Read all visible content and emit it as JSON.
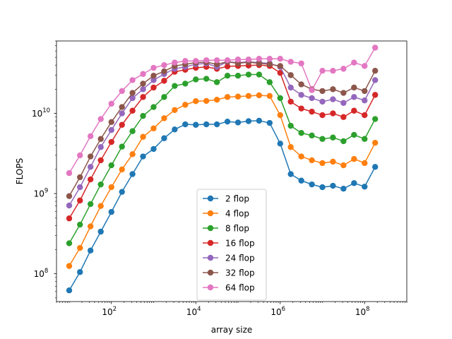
{
  "chart_data": {
    "type": "line",
    "title": "",
    "xlabel": "array size",
    "ylabel": "FLOPS",
    "xscale": "log",
    "yscale": "log",
    "xlim": [
      5,
      1000000000.0
    ],
    "ylim": [
      45000000.0,
      80000000000.0
    ],
    "xticks": [
      {
        "value": 100,
        "base": "10",
        "exp": "2"
      },
      {
        "value": 10000,
        "base": "10",
        "exp": "4"
      },
      {
        "value": 1000000,
        "base": "10",
        "exp": "6"
      },
      {
        "value": 100000000,
        "base": "10",
        "exp": "8"
      }
    ],
    "yticks": [
      {
        "value": 100000000.0,
        "base": "10",
        "exp": "8"
      },
      {
        "value": 1000000000.0,
        "base": "10",
        "exp": "9"
      },
      {
        "value": 10000000000.0,
        "base": "10",
        "exp": "10"
      }
    ],
    "grid": false,
    "legend_position": "lower center",
    "x": [
      10,
      18,
      32,
      56,
      100,
      178,
      316,
      562,
      1000,
      1778,
      3162,
      5623,
      10000,
      17783,
      31623,
      56234,
      100000,
      177828,
      316228,
      562341,
      1000000,
      1778279,
      3162278,
      5623413,
      10000000,
      17782794,
      31622777,
      56234133,
      100000000,
      177827941
    ],
    "series": [
      {
        "name": "2 flop",
        "color": "#1f77b4",
        "values": [
          62000000.0,
          105000000.0,
          195000000.0,
          335000000.0,
          590000000.0,
          1050000000.0,
          1750000000.0,
          2900000000.0,
          3600000000.0,
          4900000000.0,
          6300000000.0,
          7300000000.0,
          7200000000.0,
          7300000000.0,
          7300000000.0,
          7900000000.0,
          7700000000.0,
          8000000000.0,
          8100000000.0,
          7600000000.0,
          4200000000.0,
          1750000000.0,
          1450000000.0,
          1300000000.0,
          1200000000.0,
          1250000000.0,
          1150000000.0,
          1350000000.0,
          1220000000.0,
          2150000000.0
        ]
      },
      {
        "name": "4 flop",
        "color": "#ff7f0e",
        "values": [
          125000000.0,
          210000000.0,
          390000000.0,
          700000000.0,
          1200000000.0,
          2000000000.0,
          3100000000.0,
          5100000000.0,
          6500000000.0,
          8700000000.0,
          11000000000.0,
          12800000000.0,
          14200000000.0,
          14300000000.0,
          14800000000.0,
          16000000000.0,
          16200000000.0,
          16500000000.0,
          16800000000.0,
          16500000000.0,
          9500000000.0,
          3800000000.0,
          2900000000.0,
          2600000000.0,
          2400000000.0,
          2500000000.0,
          2250000000.0,
          2700000000.0,
          2400000000.0,
          4300000000.0
        ]
      },
      {
        "name": "8 flop",
        "color": "#2ca02c",
        "values": [
          240000000.0,
          410000000.0,
          740000000.0,
          1300000000.0,
          2250000000.0,
          3850000000.0,
          6000000000.0,
          9300000000.0,
          12000000000.0,
          16000000000.0,
          22000000000.0,
          23500000000.0,
          26500000000.0,
          27000000000.0,
          24500000000.0,
          29500000000.0,
          29500000000.0,
          30500000000.0,
          30500000000.0,
          24500000000.0,
          15500000000.0,
          7000000000.0,
          5700000000.0,
          5300000000.0,
          4800000000.0,
          5000000000.0,
          4500000000.0,
          5400000000.0,
          4800000000.0,
          8500000000.0
        ]
      },
      {
        "name": "16 flop",
        "color": "#d62728",
        "values": [
          490000000.0,
          820000000.0,
          1500000000.0,
          2600000000.0,
          4400000000.0,
          7200000000.0,
          10800000000.0,
          16000000000.0,
          21000000000.0,
          25500000000.0,
          33000000000.0,
          35000000000.0,
          37000000000.0,
          38000000000.0,
          36000000000.0,
          38500000000.0,
          39000000000.0,
          39500000000.0,
          40000000000.0,
          39000000000.0,
          32000000000.0,
          14000000000.0,
          11500000000.0,
          10500000000.0,
          9500000000.0,
          10000000000.0,
          9000000000.0,
          10800000000.0,
          9500000000.0,
          17000000000.0
        ]
      },
      {
        "name": "24 flop",
        "color": "#9467bd",
        "values": [
          710000000.0,
          1200000000.0,
          2150000000.0,
          3800000000.0,
          6200000000.0,
          10000000000.0,
          15500000000.0,
          20000000000.0,
          26000000000.0,
          31000000000.0,
          36000000000.0,
          38000000000.0,
          41000000000.0,
          42000000000.0,
          38000000000.0,
          44000000000.0,
          43000000000.0,
          44000000000.0,
          43000000000.0,
          42000000000.0,
          38000000000.0,
          21000000000.0,
          17000000000.0,
          15500000000.0,
          14000000000.0,
          15000000000.0,
          13500000000.0,
          16000000000.0,
          14500000000.0,
          26000000000.0
        ]
      },
      {
        "name": "32 flop",
        "color": "#8c564b",
        "values": [
          930000000.0,
          1600000000.0,
          2900000000.0,
          4800000000.0,
          7800000000.0,
          12000000000.0,
          18000000000.0,
          23500000000.0,
          29500000000.0,
          33500000000.0,
          39000000000.0,
          41000000000.0,
          43000000000.0,
          43500000000.0,
          41000000000.0,
          44000000000.0,
          42000000000.0,
          43500000000.0,
          42000000000.0,
          41000000000.0,
          39000000000.0,
          30000000000.0,
          23000000000.0,
          20000000000.0,
          19000000000.0,
          20000000000.0,
          18000000000.0,
          21000000000.0,
          19000000000.0,
          34000000000.0
        ]
      },
      {
        "name": "64 flop",
        "color": "#e377c2",
        "values": [
          1800000000.0,
          3000000000.0,
          5200000000.0,
          8500000000.0,
          13200000000.0,
          19000000000.0,
          26000000000.0,
          31000000000.0,
          37000000000.0,
          40000000000.0,
          43000000000.0,
          45000000000.0,
          45000000000.0,
          46000000000.0,
          46000000000.0,
          46000000000.0,
          47000000000.0,
          47000000000.0,
          48000000000.0,
          48000000000.0,
          48000000000.0,
          44000000000.0,
          42000000000.0,
          19500000000.0,
          34000000000.0,
          34000000000.0,
          36000000000.0,
          43000000000.0,
          39000000000.0,
          66000000000.0
        ]
      }
    ]
  }
}
